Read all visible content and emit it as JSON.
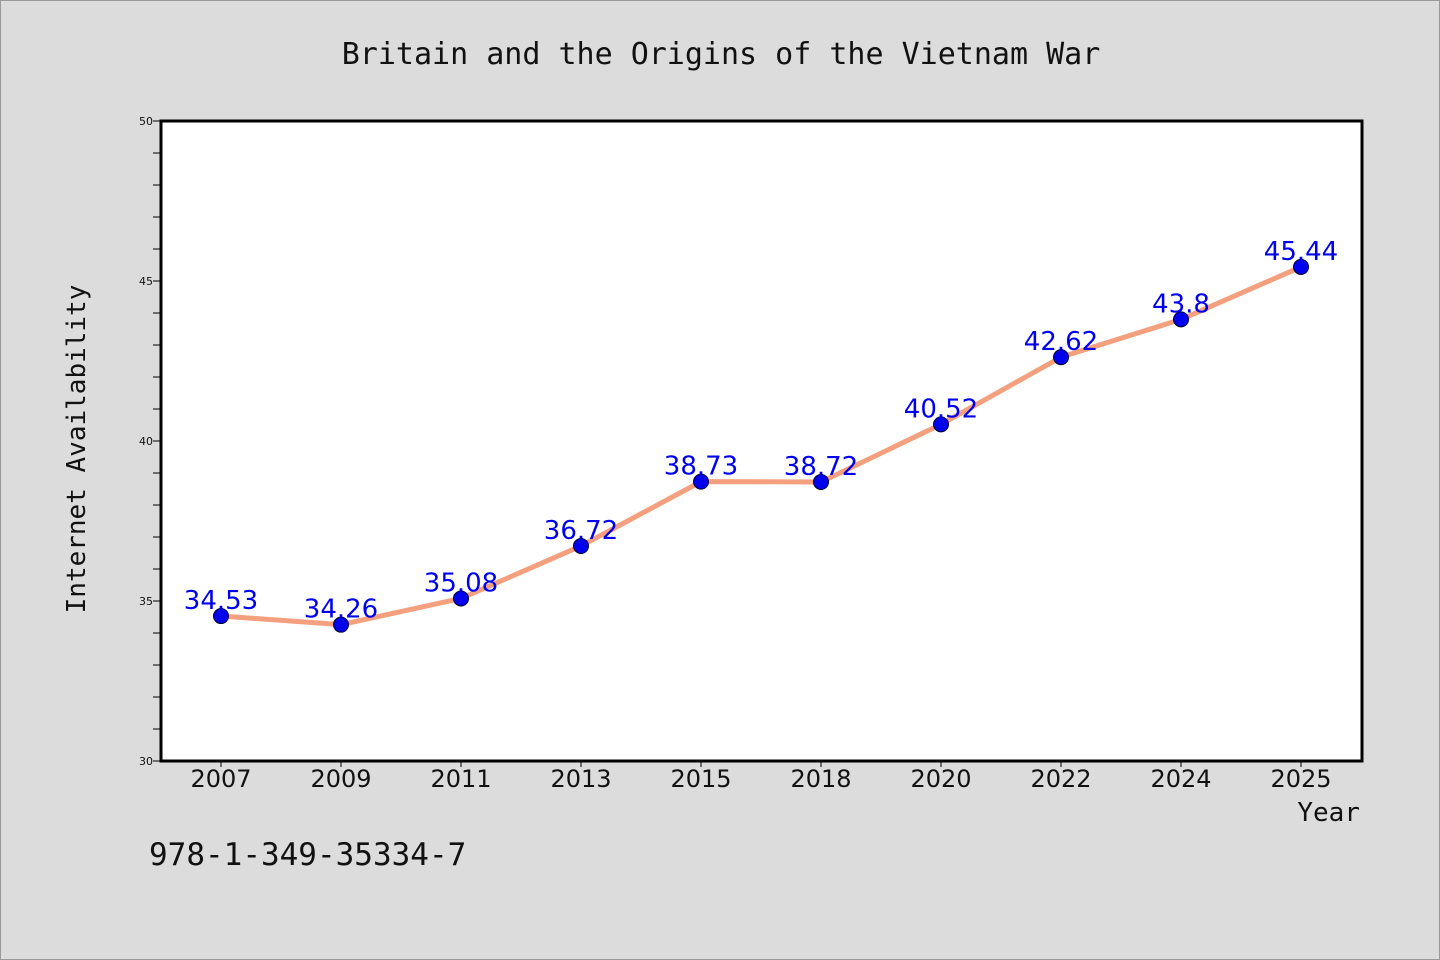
{
  "chart_data": {
    "type": "line",
    "title": "Britain and the Origins of the Vietnam War",
    "xlabel": "Year",
    "ylabel": "Internet Availability",
    "categories": [
      "2007",
      "2009",
      "2011",
      "2013",
      "2015",
      "2018",
      "2020",
      "2022",
      "2024",
      "2025"
    ],
    "series": [
      {
        "values": [
          34.53,
          34.26,
          35.08,
          36.72,
          38.73,
          38.72,
          40.52,
          42.62,
          43.8,
          45.44
        ],
        "labels": [
          "34.53",
          "34.26",
          "35.08",
          "36.72",
          "38.73",
          "38.72",
          "40.52",
          "42.62",
          "43.8",
          "45.44"
        ]
      }
    ],
    "ylim": [
      30,
      50
    ],
    "yticks": [
      "30",
      "35",
      "40",
      "45",
      "50"
    ],
    "grid": false,
    "legend": "none",
    "colors": {
      "line": "#f4a07e",
      "marker": "#0000ee",
      "label": "#0000ee",
      "background": "#dcdcdc",
      "plot_background": "#ffffff"
    }
  },
  "footnote": "978-1-349-35334-7"
}
